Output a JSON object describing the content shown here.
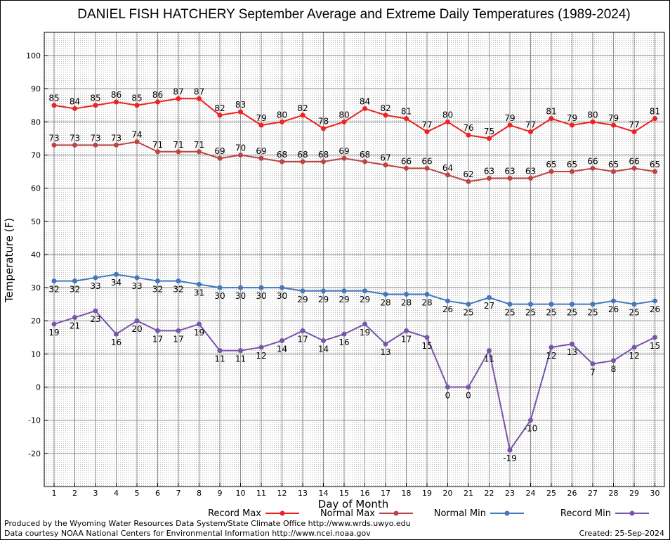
{
  "chart_data": {
    "type": "line",
    "title": "DANIEL FISH HATCHERY September Average and Extreme Daily Temperatures (1989-2024)",
    "xlabel": "Day of Month",
    "ylabel": "Temperature (F)",
    "ylim": [
      -30,
      107
    ],
    "yticks": [
      -20,
      -10,
      0,
      10,
      20,
      30,
      40,
      50,
      60,
      70,
      80,
      90,
      100
    ],
    "grid": true,
    "legend_position": "bottom",
    "x": [
      1,
      2,
      3,
      4,
      5,
      6,
      7,
      8,
      9,
      10,
      11,
      12,
      13,
      14,
      15,
      16,
      17,
      18,
      19,
      20,
      21,
      22,
      23,
      24,
      25,
      26,
      27,
      28,
      29,
      30
    ],
    "series": [
      {
        "name": "Record Max",
        "color": "#ee2222",
        "label_pos": "above",
        "values": [
          85,
          84,
          85,
          86,
          85,
          86,
          87,
          87,
          82,
          83,
          79,
          80,
          82,
          78,
          80,
          84,
          82,
          81,
          77,
          80,
          76,
          75,
          79,
          77,
          81,
          79,
          80,
          79,
          77,
          81
        ]
      },
      {
        "name": "Normal Max",
        "color": "#bb4444",
        "label_pos": "above",
        "values": [
          73,
          73,
          73,
          73,
          74,
          71,
          71,
          71,
          69,
          70,
          69,
          68,
          68,
          68,
          69,
          68,
          67,
          66,
          66,
          64,
          62,
          63,
          63,
          63,
          65,
          65,
          66,
          65,
          66,
          65
        ]
      },
      {
        "name": "Normal Min",
        "color": "#4477bb",
        "label_pos": "below",
        "values": [
          32,
          32,
          33,
          34,
          33,
          32,
          32,
          31,
          30,
          30,
          30,
          30,
          29,
          29,
          29,
          29,
          28,
          28,
          28,
          26,
          25,
          27,
          25,
          25,
          25,
          25,
          25,
          26,
          25,
          26
        ]
      },
      {
        "name": "Record Min",
        "color": "#7755aa",
        "label_pos": "below",
        "values": [
          19,
          21,
          23,
          16,
          20,
          17,
          17,
          19,
          11,
          11,
          12,
          14,
          17,
          14,
          16,
          19,
          13,
          17,
          15,
          0,
          0,
          11,
          -19,
          -10,
          12,
          13,
          7,
          8,
          12,
          15
        ]
      }
    ]
  },
  "footer": {
    "produced_by": "Produced by the Wyoming Water Resources Data System/State Climate Office http://www.wrds.uwyo.edu",
    "courtesy": "Data courtesy NOAA National Centers for Environmental Information http://www.ncei.noaa.gov",
    "created": "Created: 25-Sep-2024"
  }
}
